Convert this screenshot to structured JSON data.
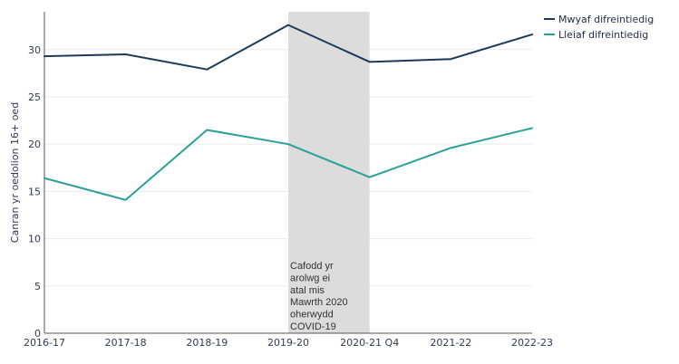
{
  "chart_data": {
    "type": "line",
    "title": "",
    "xlabel": "",
    "ylabel": "Canran yr oedolion 16+ oed",
    "x": [
      "2016-17",
      "2017-18",
      "2018-19",
      "2019-20",
      "2020-21 Q4",
      "2021-22",
      "2022-23"
    ],
    "ylim": [
      0,
      34
    ],
    "yticks": [
      0,
      5,
      10,
      15,
      20,
      25,
      30
    ],
    "grid": true,
    "legend_position": "top-right",
    "series": [
      {
        "name": "Mwyaf difreintiedig",
        "color": "#1b3a5c",
        "values": [
          29.3,
          29.5,
          27.9,
          32.6,
          28.7,
          29.0,
          31.6
        ]
      },
      {
        "name": "Lleiaf difreintiedig",
        "color": "#2aa198",
        "values": [
          16.4,
          14.1,
          21.5,
          20.0,
          16.5,
          19.6,
          21.7
        ]
      }
    ],
    "shaded_region": {
      "x_start": "2019-20",
      "x_end": "2020-21 Q4",
      "color": "#dcdcdc",
      "annotation_lines": [
        "Cafodd yr",
        "arolwg ei",
        "atal mis",
        "Mawrth 2020",
        "oherwydd",
        "COVID-19"
      ]
    }
  }
}
